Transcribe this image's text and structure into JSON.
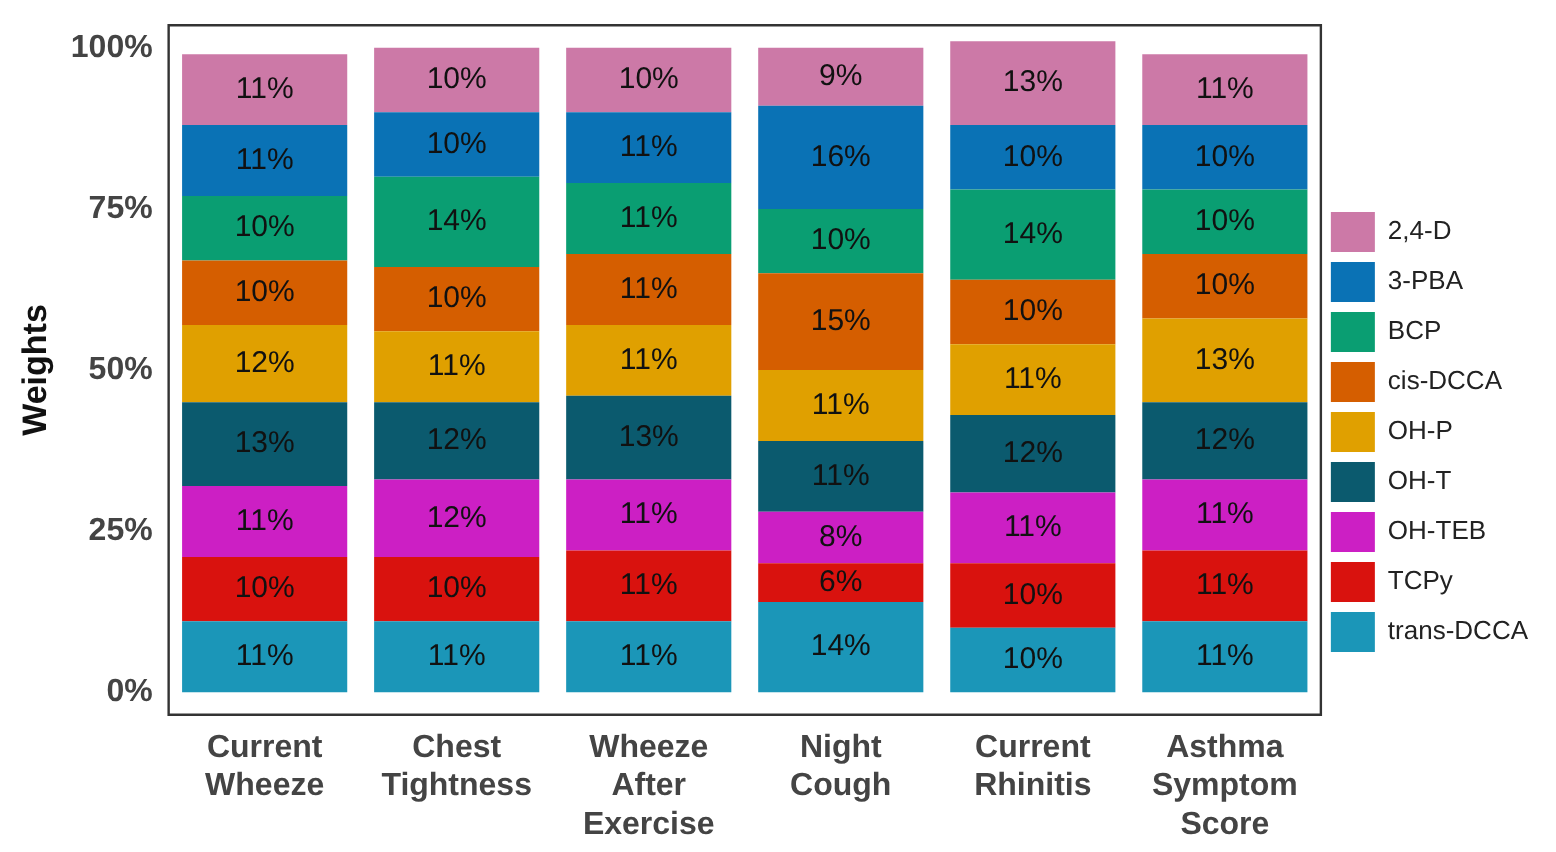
{
  "chart_data": {
    "type": "bar",
    "ylabel": "Weights",
    "stacked": true,
    "grid": false,
    "legend": "right",
    "categories": [
      "Current Wheeze",
      "Chest Tightness",
      "Wheeze After Exercise",
      "Night Cough",
      "Current Rhinitis",
      "Asthma Symptom Score"
    ],
    "ylim": [
      -3.5,
      103.5
    ],
    "yticks": [
      {
        "value": 0,
        "label": "0%"
      },
      {
        "value": 25,
        "label": "25%"
      },
      {
        "value": 50,
        "label": "50%"
      },
      {
        "value": 75,
        "label": "75%"
      },
      {
        "value": 100,
        "label": "100%"
      }
    ],
    "series": [
      {
        "name": "trans-DCCA",
        "color": "#1b96b8",
        "values": [
          11,
          11,
          11,
          14,
          10,
          11
        ],
        "value_labels": [
          "11%",
          "11%",
          "11%",
          "14%",
          "10%",
          "11%"
        ]
      },
      {
        "name": "TCPy",
        "color": "#d9120e",
        "values": [
          10,
          10,
          11,
          6,
          10,
          11
        ],
        "value_labels": [
          "10%",
          "10%",
          "11%",
          "6%",
          "10%",
          "11%"
        ]
      },
      {
        "name": "OH-TEB",
        "color": "#cc1fc4",
        "values": [
          11,
          12,
          11,
          8,
          11,
          11
        ],
        "value_labels": [
          "11%",
          "12%",
          "11%",
          "8%",
          "11%",
          "11%"
        ]
      },
      {
        "name": "OH-T",
        "color": "#0b5a6e",
        "values": [
          13,
          12,
          13,
          11,
          12,
          12
        ],
        "value_labels": [
          "13%",
          "12%",
          "13%",
          "11%",
          "12%",
          "12%"
        ]
      },
      {
        "name": "OH-P",
        "color": "#e0a000",
        "values": [
          12,
          11,
          11,
          11,
          11,
          13
        ],
        "value_labels": [
          "12%",
          "11%",
          "11%",
          "11%",
          "11%",
          "13%"
        ]
      },
      {
        "name": "cis-DCCA",
        "color": "#d55e00",
        "values": [
          10,
          10,
          11,
          15,
          10,
          10
        ],
        "value_labels": [
          "10%",
          "10%",
          "11%",
          "15%",
          "10%",
          "10%"
        ]
      },
      {
        "name": "BCP",
        "color": "#0a9e72",
        "values": [
          10,
          14,
          11,
          10,
          14,
          10
        ],
        "value_labels": [
          "10%",
          "14%",
          "11%",
          "10%",
          "14%",
          "10%"
        ]
      },
      {
        "name": "3-PBA",
        "color": "#0a72b5",
        "values": [
          11,
          10,
          11,
          16,
          10,
          10
        ],
        "value_labels": [
          "11%",
          "10%",
          "11%",
          "16%",
          "10%",
          "10%"
        ]
      },
      {
        "name": "2,4-D",
        "color": "#cc79a7",
        "values": [
          11,
          10,
          10,
          9,
          13,
          11
        ],
        "value_labels": [
          "11%",
          "10%",
          "10%",
          "9%",
          "13%",
          "11%"
        ]
      }
    ]
  }
}
